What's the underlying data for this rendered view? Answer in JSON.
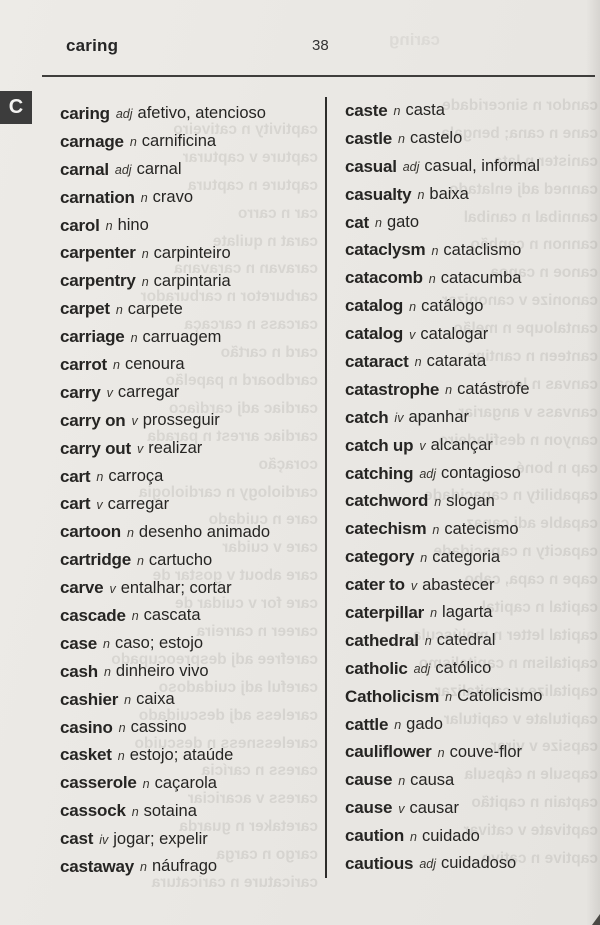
{
  "header": {
    "running_head": "caring",
    "page_number": "38"
  },
  "section_letter": "C",
  "colors": {
    "paper": "#e9e7e3",
    "ink": "#262523",
    "tab_background": "#3c3c3c",
    "tab_letter": "#f4f3f1",
    "rule": "#3f3e3c",
    "divider": "#2e2d2b",
    "bleed_text": "#5e5b55"
  },
  "columns": {
    "left": [
      {
        "hw": "caring",
        "pos": "adj",
        "tr": "afetivo, atencioso"
      },
      {
        "hw": "carnage",
        "pos": "n",
        "tr": "carnificina"
      },
      {
        "hw": "carnal",
        "pos": "adj",
        "tr": "carnal"
      },
      {
        "hw": "carnation",
        "pos": "n",
        "tr": "cravo"
      },
      {
        "hw": "carol",
        "pos": "n",
        "tr": "hino"
      },
      {
        "hw": "carpenter",
        "pos": "n",
        "tr": "carpinteiro"
      },
      {
        "hw": "carpentry",
        "pos": "n",
        "tr": "carpintaria"
      },
      {
        "hw": "carpet",
        "pos": "n",
        "tr": "carpete"
      },
      {
        "hw": "carriage",
        "pos": "n",
        "tr": "carruagem"
      },
      {
        "hw": "carrot",
        "pos": "n",
        "tr": "cenoura"
      },
      {
        "hw": "carry",
        "pos": "v",
        "tr": "carregar"
      },
      {
        "hw": "carry on",
        "pos": "v",
        "tr": "prosseguir"
      },
      {
        "hw": "carry out",
        "pos": "v",
        "tr": "realizar"
      },
      {
        "hw": "cart",
        "pos": "n",
        "tr": "carroça"
      },
      {
        "hw": "cart",
        "pos": "v",
        "tr": "carregar"
      },
      {
        "hw": "cartoon",
        "pos": "n",
        "tr": "desenho animado"
      },
      {
        "hw": "cartridge",
        "pos": "n",
        "tr": "cartucho"
      },
      {
        "hw": "carve",
        "pos": "v",
        "tr": "entalhar; cortar"
      },
      {
        "hw": "cascade",
        "pos": "n",
        "tr": "cascata"
      },
      {
        "hw": "case",
        "pos": "n",
        "tr": "caso; estojo"
      },
      {
        "hw": "cash",
        "pos": "n",
        "tr": "dinheiro vivo"
      },
      {
        "hw": "cashier",
        "pos": "n",
        "tr": "caixa"
      },
      {
        "hw": "casino",
        "pos": "n",
        "tr": "cassino"
      },
      {
        "hw": "casket",
        "pos": "n",
        "tr": "estojo; ataúde"
      },
      {
        "hw": "casserole",
        "pos": "n",
        "tr": "caçarola"
      },
      {
        "hw": "cassock",
        "pos": "n",
        "tr": "sotaina"
      },
      {
        "hw": "cast",
        "pos": "iv",
        "tr": "jogar; expelir"
      },
      {
        "hw": "castaway",
        "pos": "n",
        "tr": "náufrago"
      }
    ],
    "right": [
      {
        "hw": "caste",
        "pos": "n",
        "tr": "casta"
      },
      {
        "hw": "castle",
        "pos": "n",
        "tr": "castelo"
      },
      {
        "hw": "casual",
        "pos": "adj",
        "tr": "casual, informal"
      },
      {
        "hw": "casualty",
        "pos": "n",
        "tr": "baixa"
      },
      {
        "hw": "cat",
        "pos": "n",
        "tr": "gato"
      },
      {
        "hw": "cataclysm",
        "pos": "n",
        "tr": "cataclismo"
      },
      {
        "hw": "catacomb",
        "pos": "n",
        "tr": "catacumba"
      },
      {
        "hw": "catalog",
        "pos": "n",
        "tr": "catálogo"
      },
      {
        "hw": "catalog",
        "pos": "v",
        "tr": "catalogar"
      },
      {
        "hw": "cataract",
        "pos": "n",
        "tr": "catarata"
      },
      {
        "hw": "catastrophe",
        "pos": "n",
        "tr": "catástrofe"
      },
      {
        "hw": "catch",
        "pos": "iv",
        "tr": "apanhar"
      },
      {
        "hw": "catch up",
        "pos": "v",
        "tr": "alcançar"
      },
      {
        "hw": "catching",
        "pos": "adj",
        "tr": "contagioso"
      },
      {
        "hw": "catchword",
        "pos": "n",
        "tr": "slogan"
      },
      {
        "hw": "catechism",
        "pos": "n",
        "tr": "catecismo"
      },
      {
        "hw": "category",
        "pos": "n",
        "tr": "categoria"
      },
      {
        "hw": "cater to",
        "pos": "v",
        "tr": "abastecer"
      },
      {
        "hw": "caterpillar",
        "pos": "n",
        "tr": "lagarta"
      },
      {
        "hw": "cathedral",
        "pos": "n",
        "tr": "catedral"
      },
      {
        "hw": "catholic",
        "pos": "adj",
        "tr": "católico"
      },
      {
        "hw": "Catholicism",
        "pos": "n",
        "tr": "Catolicismo"
      },
      {
        "hw": "cattle",
        "pos": "n",
        "tr": "gado"
      },
      {
        "hw": "cauliflower",
        "pos": "n",
        "tr": "couve-flor"
      },
      {
        "hw": "cause",
        "pos": "n",
        "tr": "causa"
      },
      {
        "hw": "cause",
        "pos": "v",
        "tr": "causar"
      },
      {
        "hw": "caution",
        "pos": "n",
        "tr": "cuidado"
      },
      {
        "hw": "cautious",
        "pos": "adj",
        "tr": "cuidadoso"
      }
    ]
  },
  "bleed_through": {
    "header_ghost": "caring",
    "left": [
      "captivity n cativeiro",
      "capture v capturar",
      "capture n captura",
      "car n carro",
      "carat n quilate",
      "caravan n caravana",
      "carburetor n carburador",
      "carcass n carcaça",
      "card n cartão",
      "cardboard n papelão",
      "cardiac adj cardíaco",
      "cardiac arrest n parada",
      "coração",
      "cardiology n cardiologia",
      "care n cuidado",
      "care v cuidar",
      "care about v gostar de",
      "care for v cuidar de",
      "career n carreira",
      "carefree adj despreocupado",
      "careful adj cuidadoso",
      "careless adj descuidado",
      "carelessness n descuido",
      "caress n carícia",
      "caress v acariciar",
      "caretaker n guarda",
      "cargo n carga",
      "caricature n caricatura"
    ],
    "right": [
      "candor n sinceridade",
      "cane n cana; bengala",
      "canister n lata",
      "canned adj enlatado",
      "cannibal n canibal",
      "cannon n canhão",
      "canoe n canoa",
      "canonize v canonizar",
      "cantaloupe n melão",
      "canteen n cantina",
      "canvas n lona",
      "canvass v angariar",
      "canyon n desfiladeiro",
      "cap n boné",
      "capability n capacidade",
      "capable adj capaz",
      "capacity n capacidade",
      "cape n capa, cabo",
      "capital n capital",
      "capital letter n maiúscula",
      "capitalism n capitalismo",
      "capitalize v capitalizar",
      "capitulate v capitular",
      "capsize v virar",
      "capsule n cápsula",
      "captain n capitão",
      "captivate v cativar",
      "captive n cativo"
    ]
  }
}
